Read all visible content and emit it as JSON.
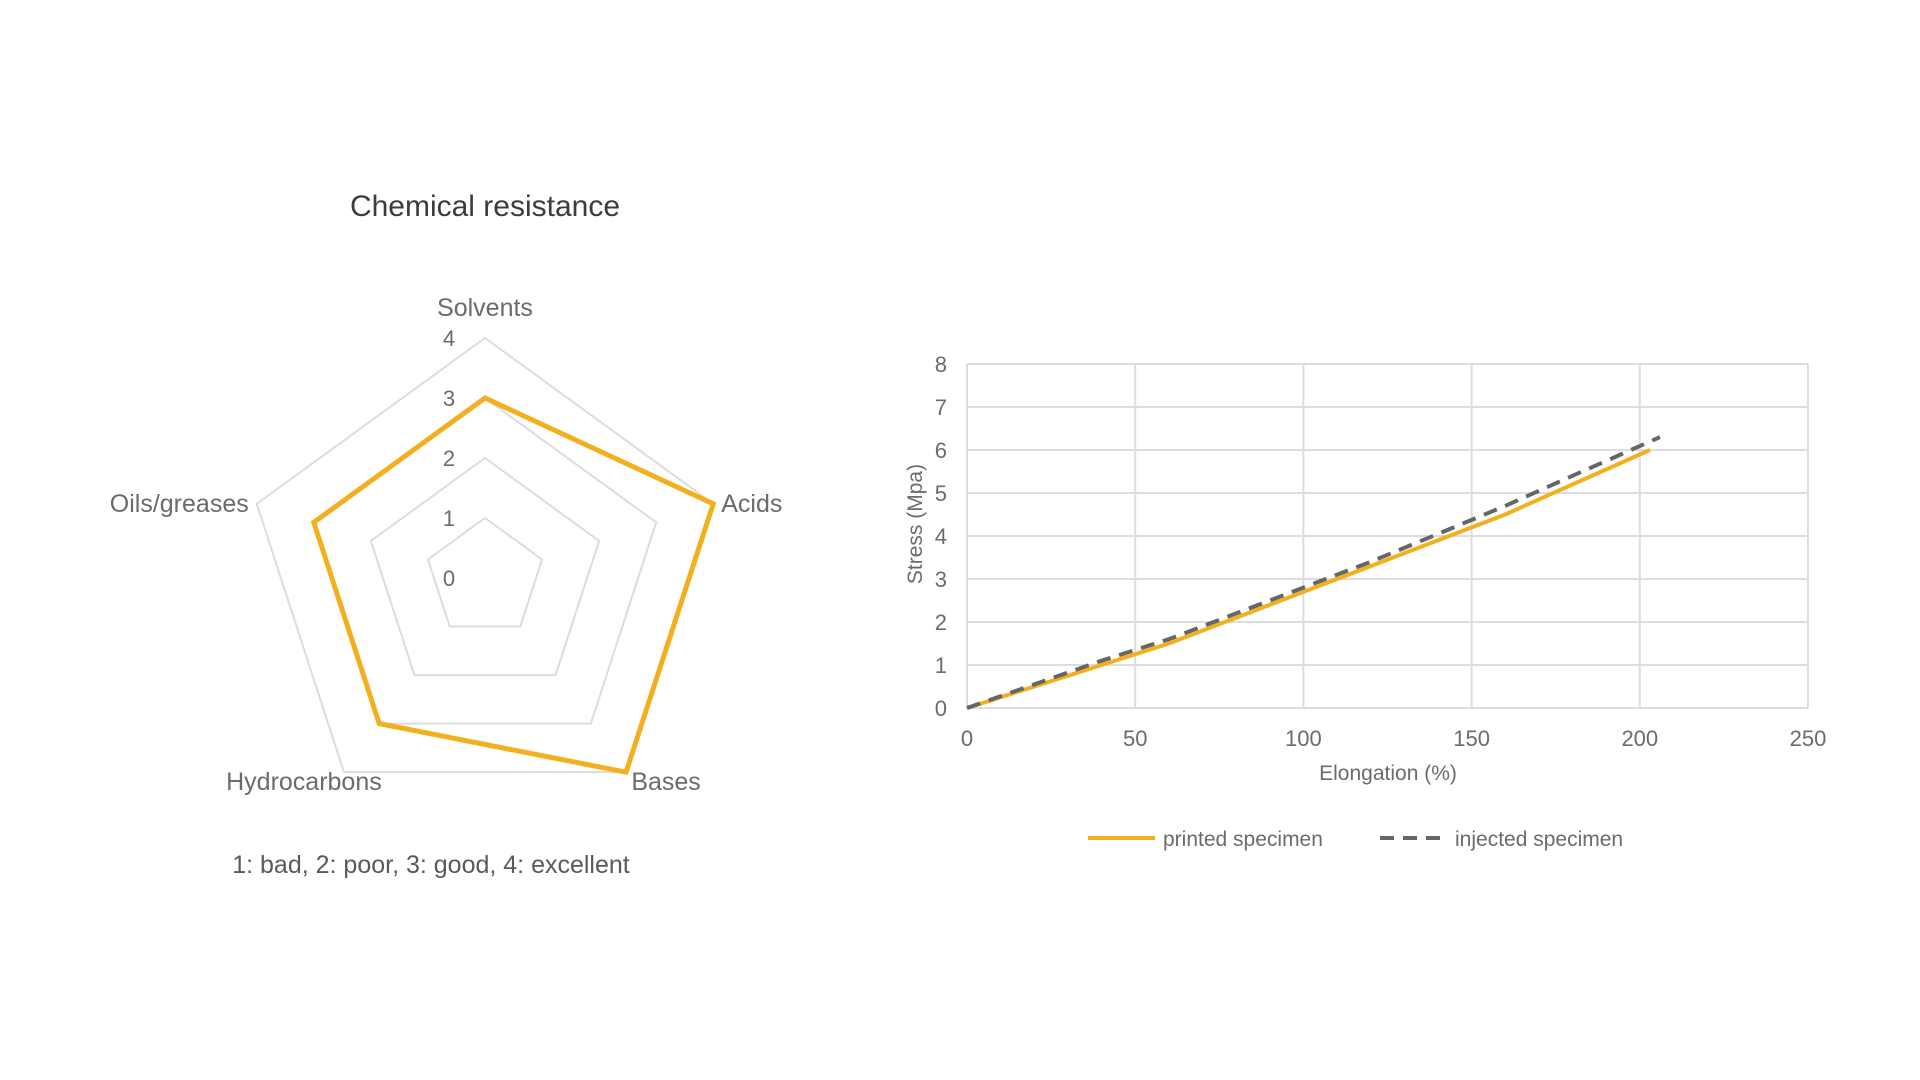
{
  "chart_data": [
    {
      "type": "radar",
      "title": "Chemical resistance",
      "categories": [
        "Solvents",
        "Acids",
        "Bases",
        "Hydrocarbons",
        "Oils/greases"
      ],
      "radial_ticks": [
        "0",
        "1",
        "2",
        "3",
        "4"
      ],
      "rlim": [
        0,
        4
      ],
      "values": [
        3,
        4,
        4,
        3,
        3
      ],
      "note": "1: bad, 2: poor, 3: good, 4: excellent",
      "grid": true,
      "colors": {
        "series": "#f2b01e",
        "grid": "#dcdcdc"
      }
    },
    {
      "type": "line",
      "xlabel": "Elongation (%)",
      "ylabel": "Stress (Mpa)",
      "xlim": [
        0,
        250
      ],
      "ylim": [
        0,
        8
      ],
      "xticks": [
        "0",
        "50",
        "100",
        "150",
        "200",
        "250"
      ],
      "yticks": [
        "0",
        "1",
        "2",
        "3",
        "4",
        "5",
        "6",
        "7",
        "8"
      ],
      "grid": true,
      "legend_position": "bottom",
      "series": [
        {
          "name": "printed specimen",
          "color": "#f2b01e",
          "dash": "solid",
          "x": [
            0,
            20,
            40,
            60,
            80,
            100,
            120,
            140,
            160,
            180,
            203
          ],
          "y": [
            0,
            0.5,
            1.0,
            1.5,
            2.1,
            2.7,
            3.3,
            3.9,
            4.5,
            5.2,
            6.0
          ]
        },
        {
          "name": "injected specimen",
          "color": "#666666",
          "dash": "dashed",
          "x": [
            0,
            20,
            40,
            60,
            80,
            100,
            120,
            140,
            160,
            180,
            206
          ],
          "y": [
            0,
            0.55,
            1.1,
            1.6,
            2.2,
            2.8,
            3.4,
            4.05,
            4.7,
            5.4,
            6.3
          ]
        }
      ]
    }
  ]
}
